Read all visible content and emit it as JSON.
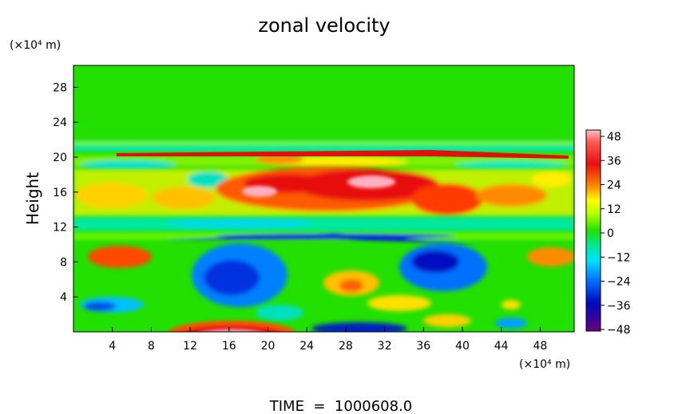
{
  "chart_data": {
    "type": "heatmap",
    "title": "zonal velocity",
    "ylabel": "Height",
    "y_unit_label": "(×10⁴ m)",
    "x_unit_label": "(×10⁴ m)",
    "xlim": [
      0,
      51.5
    ],
    "ylim": [
      0,
      30.5
    ],
    "x_ticks": [
      "4",
      "8",
      "12",
      "16",
      "20",
      "24",
      "28",
      "32",
      "36",
      "40",
      "44",
      "48"
    ],
    "y_ticks": [
      "4",
      "8",
      "12",
      "16",
      "20",
      "24",
      "28"
    ],
    "colorbar": {
      "ticks": [
        "48",
        "36",
        "24",
        "12",
        "0",
        "−12",
        "−24",
        "−36",
        "−48"
      ],
      "range": [
        -54,
        54
      ]
    },
    "field_summary": {
      "background_value": 6,
      "features": [
        {
          "x": [
            5,
            50
          ],
          "y": 20.2,
          "value": 36,
          "desc": "thin positive jet near 20"
        },
        {
          "x": [
            12,
            40
          ],
          "y": 16.5,
          "value": 40,
          "desc": "strong positive band 14–18"
        },
        {
          "x": [
            0,
            51
          ],
          "y": 12.3,
          "value": -6,
          "desc": "weak negative band"
        },
        {
          "x": [
            12,
            42
          ],
          "y": 10.5,
          "value": -34,
          "desc": "negative jet near 10.5"
        },
        {
          "x": [
            13,
            20
          ],
          "y": 6,
          "value": -26,
          "desc": "negative lower region"
        },
        {
          "x": [
            34,
            40
          ],
          "y": 8,
          "value": -36,
          "desc": "negative core"
        },
        {
          "x": [
            12,
            20
          ],
          "y": 0.3,
          "value": 46,
          "desc": "strong positive at surface"
        }
      ]
    }
  },
  "footer": {
    "time_label": "TIME  =  1000608.0"
  }
}
